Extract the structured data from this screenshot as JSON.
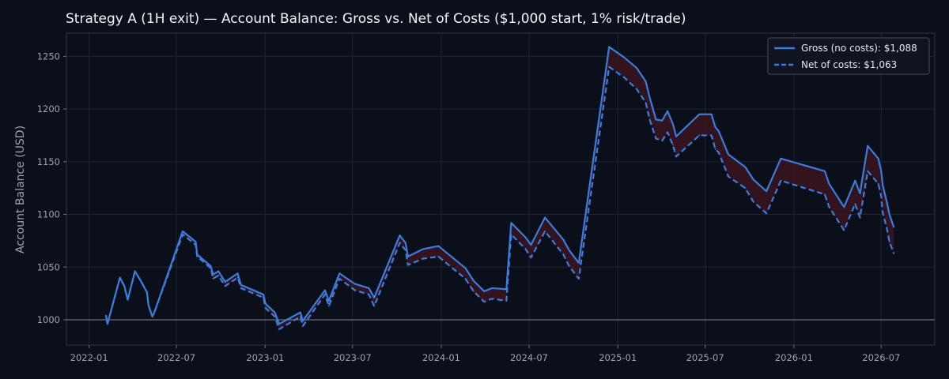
{
  "chart_data": {
    "type": "line",
    "title": "Strategy A (1H exit) — Account Balance: Gross vs. Net of Costs ($1,000 start, 1% risk/trade)",
    "xlabel": "",
    "ylabel": "Account Balance (USD)",
    "xlim": [
      "2021-11-15",
      "2026-10-20"
    ],
    "ylim": [
      976,
      1272
    ],
    "x_ticks": [
      "2022-01",
      "2022-07",
      "2023-01",
      "2023-07",
      "2024-01",
      "2024-07",
      "2025-01",
      "2025-07",
      "2026-01",
      "2026-07"
    ],
    "y_ticks": [
      1000,
      1050,
      1100,
      1150,
      1200,
      1250
    ],
    "baseline": 1000,
    "grid": true,
    "legend_position": "top-right",
    "fill_between_color": "#3a1420",
    "colors": {
      "background": "#0b0f19",
      "grid": "#1e2433",
      "line": "#3b7ddd",
      "baseline": "#6b7280"
    },
    "x": [
      "2022-02-05",
      "2022-02-08",
      "2022-03-06",
      "2022-03-15",
      "2022-03-22",
      "2022-04-06",
      "2022-04-18",
      "2022-05-01",
      "2022-05-04",
      "2022-05-12",
      "2022-05-17",
      "2022-07-14",
      "2022-08-10",
      "2022-08-13",
      "2022-09-10",
      "2022-09-15",
      "2022-09-26",
      "2022-10-10",
      "2022-11-05",
      "2022-11-12",
      "2022-12-28",
      "2023-01-02",
      "2023-01-21",
      "2023-01-30",
      "2023-03-15",
      "2023-03-20",
      "2023-05-05",
      "2023-05-13",
      "2023-06-04",
      "2023-07-06",
      "2023-08-04",
      "2023-08-15",
      "2023-10-07",
      "2023-10-19",
      "2023-10-24",
      "2023-11-24",
      "2023-12-26",
      "2024-02-20",
      "2024-03-08",
      "2024-03-30",
      "2024-04-15",
      "2024-05-15",
      "2024-05-25",
      "2024-06-24",
      "2024-07-05",
      "2024-08-03",
      "2024-09-10",
      "2024-09-22",
      "2024-10-12",
      "2024-12-14",
      "2025-01-14",
      "2025-02-09",
      "2025-02-28",
      "2025-03-08",
      "2025-03-21",
      "2025-04-03",
      "2025-04-14",
      "2025-04-25",
      "2025-05-02",
      "2025-06-19",
      "2025-07-14",
      "2025-07-22",
      "2025-07-29",
      "2025-08-18",
      "2025-09-22",
      "2025-10-09",
      "2025-11-05",
      "2025-12-05",
      "2026-03-06",
      "2026-03-15",
      "2026-04-15",
      "2026-05-08",
      "2026-05-18",
      "2026-06-03",
      "2026-06-25",
      "2026-07-01",
      "2026-07-04",
      "2026-07-13",
      "2026-07-18",
      "2026-07-27"
    ],
    "series": [
      {
        "name": "Gross (no costs): $1,088",
        "style": "solid",
        "values": [
          1004,
          996,
          1040,
          1032,
          1019,
          1046,
          1037,
          1026,
          1014,
          1003,
          1008,
          1084,
          1074,
          1062,
          1051,
          1043,
          1046,
          1036,
          1044,
          1033,
          1024,
          1015,
          1007,
          996,
          1007,
          999,
          1028,
          1018,
          1044,
          1034,
          1030,
          1021,
          1080,
          1073,
          1060,
          1067,
          1070,
          1049,
          1037,
          1027,
          1030,
          1029,
          1092,
          1078,
          1071,
          1097,
          1076,
          1066,
          1054,
          1259,
          1249,
          1239,
          1226,
          1211,
          1190,
          1189,
          1198,
          1186,
          1174,
          1195,
          1195,
          1183,
          1179,
          1157,
          1145,
          1133,
          1122,
          1153,
          1141,
          1129,
          1107,
          1132,
          1120,
          1165,
          1153,
          1141,
          1128,
          1111,
          1100,
          1088
        ]
      },
      {
        "name": "Net of costs: $1,063",
        "style": "dashed",
        "values": [
          1004,
          996,
          1040,
          1032,
          1019,
          1046,
          1037,
          1026,
          1014,
          1003,
          1008,
          1081,
          1071,
          1060,
          1049,
          1039,
          1042,
          1032,
          1040,
          1030,
          1021,
          1011,
          1003,
          991,
          1003,
          994,
          1024,
          1013,
          1039,
          1028,
          1024,
          1013,
          1073,
          1066,
          1052,
          1058,
          1060,
          1039,
          1027,
          1017,
          1020,
          1018,
          1081,
          1067,
          1059,
          1084,
          1062,
          1051,
          1039,
          1240,
          1230,
          1219,
          1206,
          1190,
          1172,
          1170,
          1178,
          1166,
          1155,
          1175,
          1175,
          1162,
          1159,
          1136,
          1125,
          1112,
          1101,
          1132,
          1119,
          1107,
          1085,
          1110,
          1097,
          1141,
          1129,
          1117,
          1102,
          1086,
          1074,
          1063
        ]
      }
    ]
  }
}
